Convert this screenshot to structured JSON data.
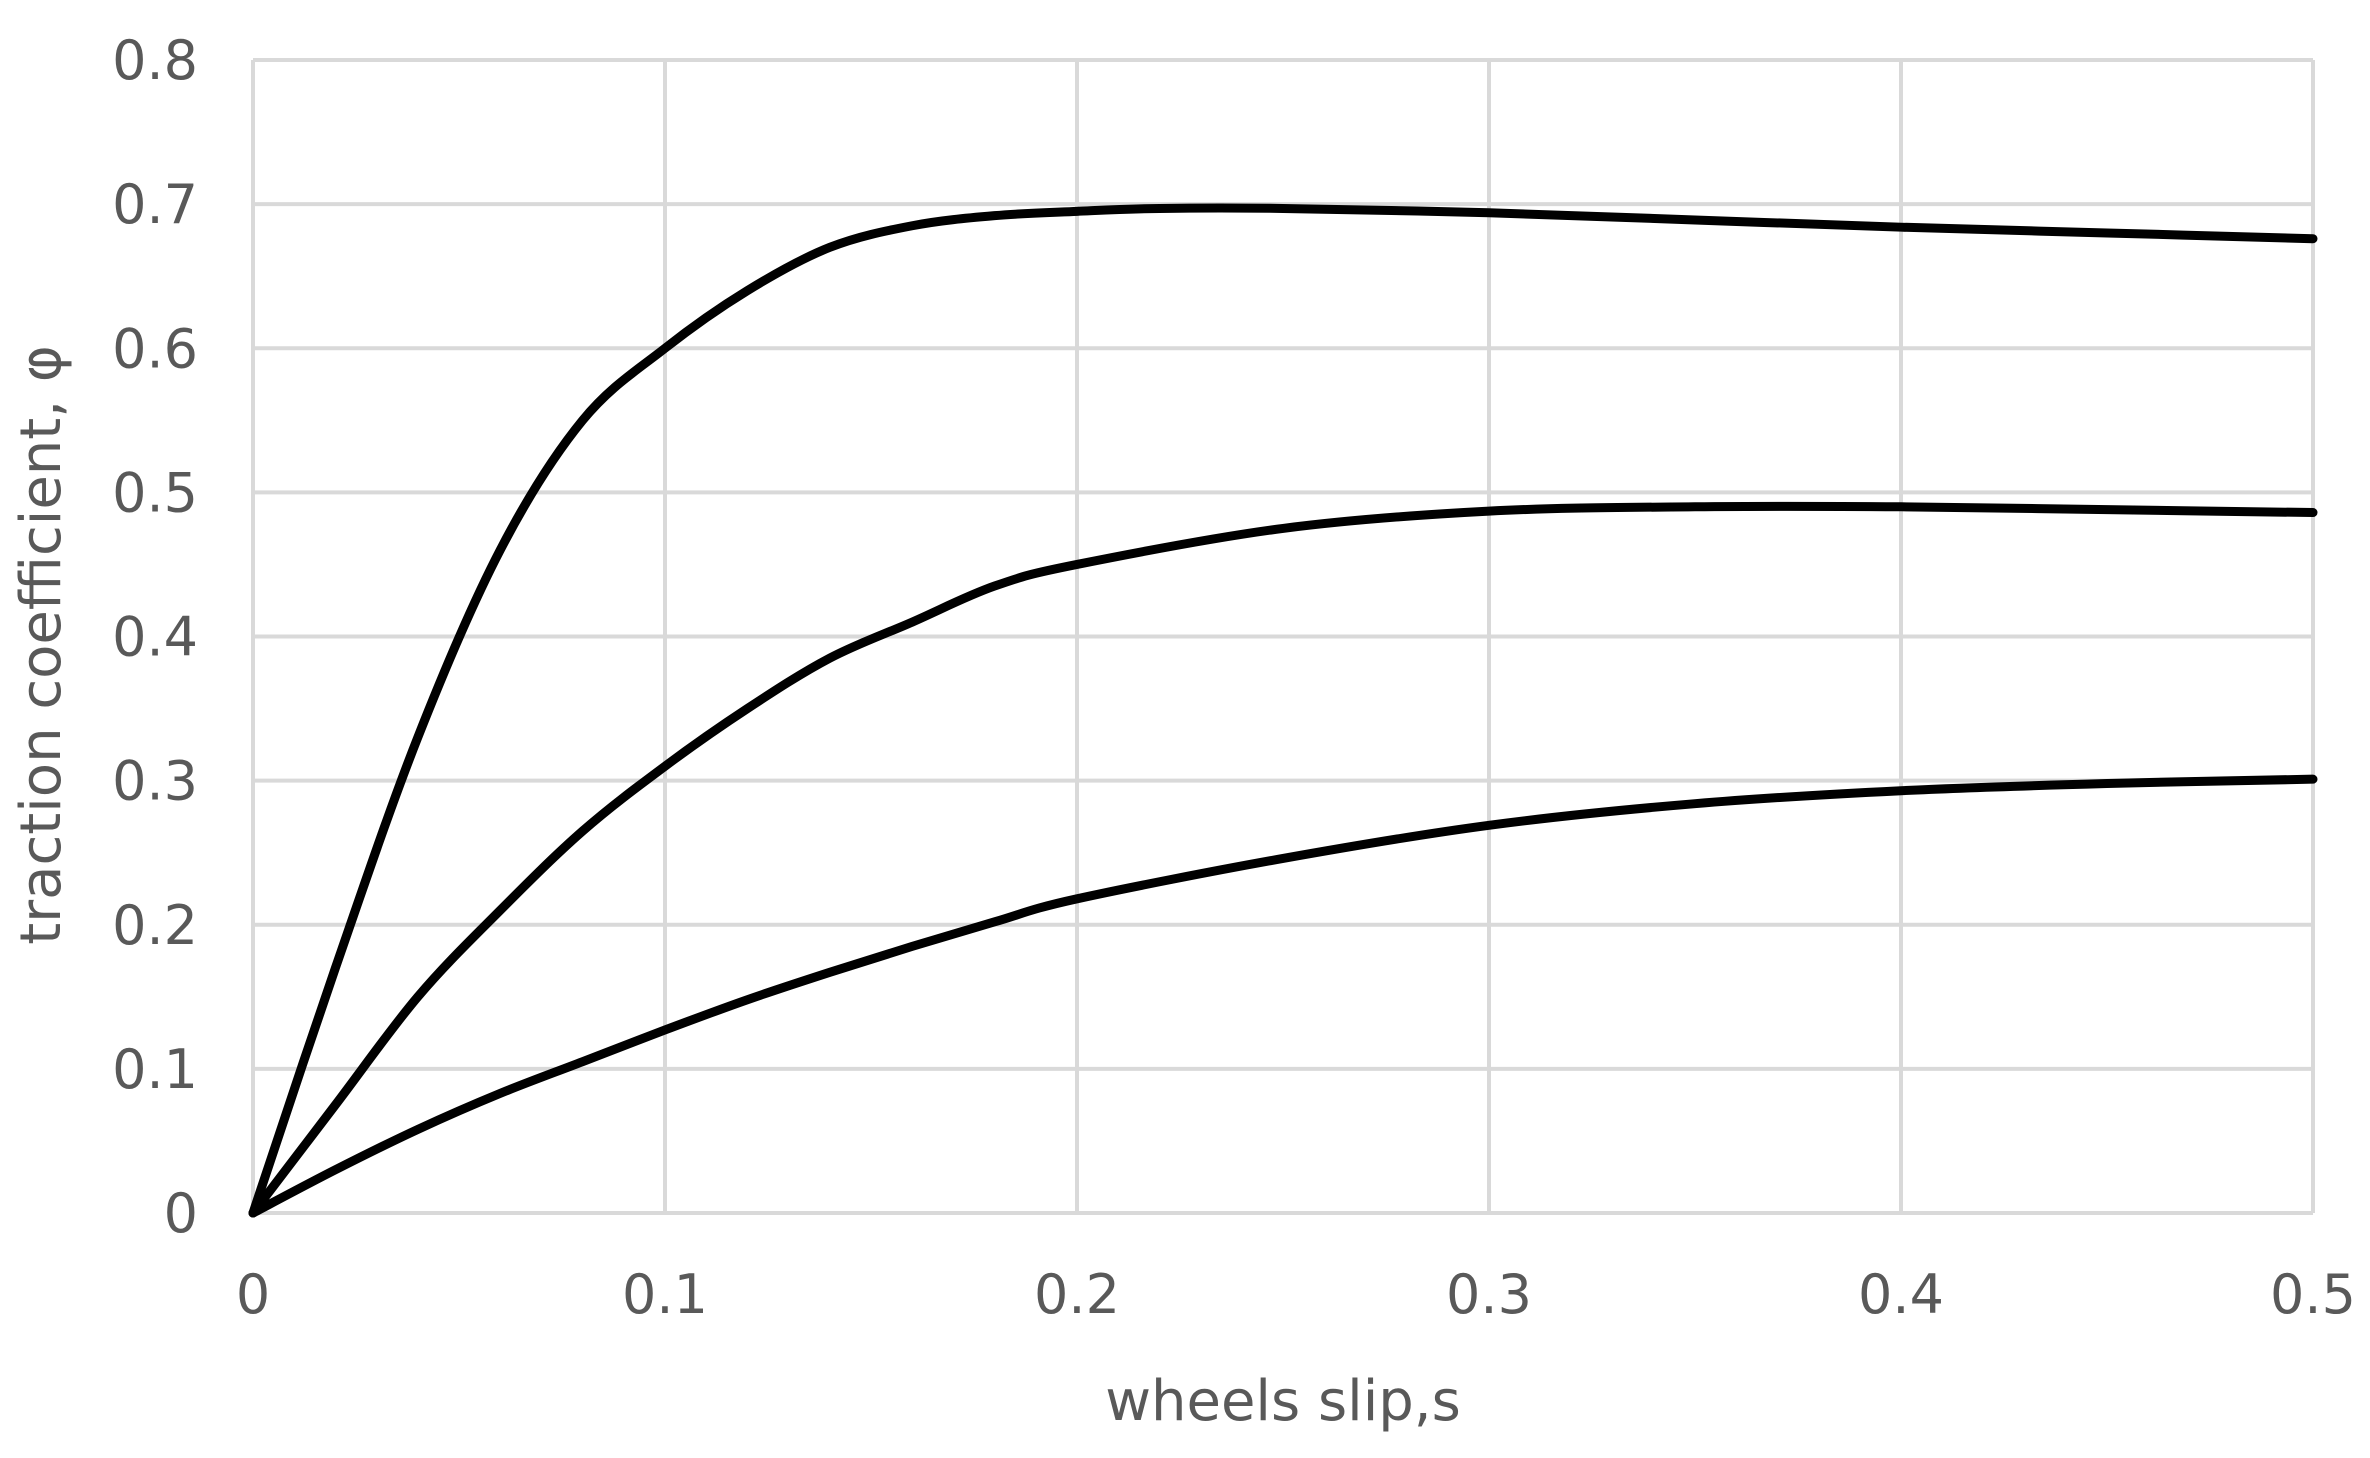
{
  "chart_data": {
    "type": "line",
    "title": "",
    "xlabel": "wheels slip,s",
    "ylabel": "traction coefficient, φ",
    "xlim": [
      0,
      0.5
    ],
    "ylim": [
      0,
      0.8
    ],
    "grid": true,
    "legend": "none",
    "x_ticks": [
      "0",
      "0.1",
      "0.2",
      "0.3",
      "0.4",
      "0.5"
    ],
    "y_ticks": [
      "0",
      "0.1",
      "0.2",
      "0.3",
      "0.4",
      "0.5",
      "0.6",
      "0.7",
      "0.8"
    ],
    "colors": {
      "series": "#000000",
      "grid": "#d9d9d9",
      "text": "#595959"
    },
    "series": [
      {
        "x": [
          0,
          0.02,
          0.04,
          0.06,
          0.08,
          0.1,
          0.12,
          0.14,
          0.16,
          0.18,
          0.2,
          0.22,
          0.25,
          0.3,
          0.35,
          0.4,
          0.45,
          0.5
        ],
        "values": [
          0,
          0.17,
          0.33,
          0.46,
          0.55,
          0.6,
          0.64,
          0.67,
          0.685,
          0.692,
          0.695,
          0.697,
          0.697,
          0.694,
          0.689,
          0.684,
          0.68,
          0.676
        ]
      },
      {
        "x": [
          0,
          0.02,
          0.04,
          0.06,
          0.08,
          0.1,
          0.12,
          0.14,
          0.16,
          0.18,
          0.2,
          0.25,
          0.3,
          0.35,
          0.4,
          0.45,
          0.5
        ],
        "values": [
          0,
          0.075,
          0.15,
          0.21,
          0.265,
          0.31,
          0.35,
          0.385,
          0.41,
          0.435,
          0.45,
          0.475,
          0.487,
          0.49,
          0.49,
          0.488,
          0.486
        ]
      },
      {
        "x": [
          0,
          0.02,
          0.04,
          0.06,
          0.08,
          0.1,
          0.12,
          0.14,
          0.16,
          0.18,
          0.2,
          0.25,
          0.3,
          0.35,
          0.4,
          0.45,
          0.5
        ],
        "values": [
          0,
          0.03,
          0.058,
          0.083,
          0.105,
          0.127,
          0.148,
          0.167,
          0.185,
          0.202,
          0.218,
          0.246,
          0.269,
          0.284,
          0.293,
          0.298,
          0.301
        ]
      }
    ]
  }
}
